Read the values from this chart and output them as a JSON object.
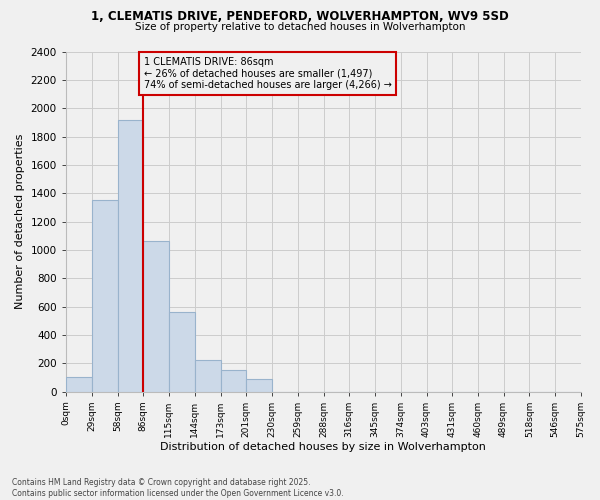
{
  "title_line1": "1, CLEMATIS DRIVE, PENDEFORD, WOLVERHAMPTON, WV9 5SD",
  "title_line2": "Size of property relative to detached houses in Wolverhampton",
  "xlabel": "Distribution of detached houses by size in Wolverhampton",
  "ylabel": "Number of detached properties",
  "annotation_line1": "1 CLEMATIS DRIVE: 86sqm",
  "annotation_line2": "← 26% of detached houses are smaller (1,497)",
  "annotation_line3": "74% of semi-detached houses are larger (4,266) →",
  "vline_x": 86,
  "bar_color": "#ccd9e8",
  "bar_edge_color": "#99b3cc",
  "vline_color": "#cc0000",
  "grid_color": "#cccccc",
  "footer_line1": "Contains HM Land Registry data © Crown copyright and database right 2025.",
  "footer_line2": "Contains public sector information licensed under the Open Government Licence v3.0.",
  "bin_edges": [
    0,
    29,
    58,
    86,
    115,
    144,
    173,
    201,
    230,
    259,
    288,
    316,
    345,
    374,
    403,
    431,
    460,
    489,
    518,
    546,
    575
  ],
  "bin_labels": [
    "0sqm",
    "29sqm",
    "58sqm",
    "86sqm",
    "115sqm",
    "144sqm",
    "173sqm",
    "201sqm",
    "230sqm",
    "259sqm",
    "288sqm",
    "316sqm",
    "345sqm",
    "374sqm",
    "403sqm",
    "431sqm",
    "460sqm",
    "489sqm",
    "518sqm",
    "546sqm",
    "575sqm"
  ],
  "bar_heights": [
    100,
    1350,
    1920,
    1060,
    560,
    220,
    155,
    90,
    0,
    0,
    0,
    0,
    0,
    0,
    0,
    0,
    0,
    0,
    0,
    0
  ],
  "ylim": [
    0,
    2400
  ],
  "yticks": [
    0,
    200,
    400,
    600,
    800,
    1000,
    1200,
    1400,
    1600,
    1800,
    2000,
    2200,
    2400
  ],
  "background_color": "#f0f0f0",
  "fig_width": 6.0,
  "fig_height": 5.0,
  "dpi": 100
}
